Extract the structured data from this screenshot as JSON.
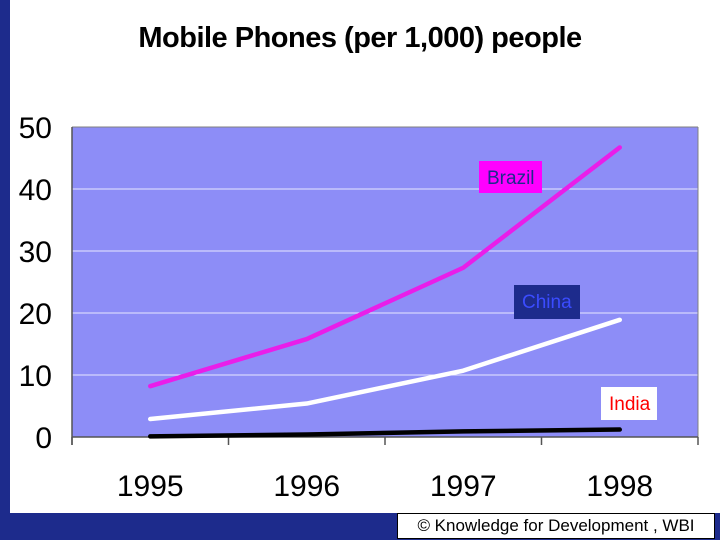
{
  "chart_data": {
    "type": "line",
    "title": "Mobile Phones (per 1,000) people",
    "x": [
      "1995",
      "1996",
      "1997",
      "1998"
    ],
    "ylim": [
      0,
      50
    ],
    "yticks": [
      "0",
      "10",
      "20",
      "30",
      "40",
      "50"
    ],
    "grid": true,
    "series": [
      {
        "name": "Brazil",
        "values": [
          8.2,
          15.8,
          27.3,
          46.7
        ]
      },
      {
        "name": "China",
        "values": [
          2.9,
          5.4,
          10.7,
          18.9
        ]
      },
      {
        "name": "India",
        "values": [
          0.1,
          0.4,
          0.9,
          1.2
        ]
      }
    ]
  },
  "labels": {
    "brazil": "Brazil",
    "china": "China",
    "india": "India"
  },
  "credit": "© Knowledge for Development , WBI",
  "colors": {
    "plot_bg": "#8d8df7",
    "grid": "#e8e8ff",
    "brazil": "#e91ee9",
    "china": "#ffffff",
    "india": "#000000",
    "frame": "#1d2b8c"
  }
}
